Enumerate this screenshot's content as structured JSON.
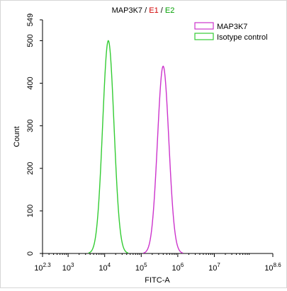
{
  "chart_data": {
    "type": "line",
    "title_parts": [
      {
        "text": "MAP3K7",
        "color": "#000000"
      },
      {
        "text": " / ",
        "color": "#000000"
      },
      {
        "text": "E1",
        "color": "#d10000"
      },
      {
        "text": " / ",
        "color": "#000000"
      },
      {
        "text": "E2",
        "color": "#00a000"
      }
    ],
    "xlabel": "FITC-A",
    "ylabel": "Count",
    "x_scale": "log",
    "xlim": [
      2.3,
      8.6
    ],
    "ylim": [
      0,
      549
    ],
    "x_ticks": [
      {
        "base": "10",
        "exp": "2.3",
        "v": 2.3
      },
      {
        "base": "10",
        "exp": "3",
        "v": 3
      },
      {
        "base": "10",
        "exp": "4",
        "v": 4
      },
      {
        "base": "10",
        "exp": "5",
        "v": 5
      },
      {
        "base": "10",
        "exp": "6",
        "v": 6
      },
      {
        "base": "10",
        "exp": "7",
        "v": 7
      },
      {
        "base": "10",
        "exp": "8.6",
        "v": 8.6
      }
    ],
    "y_ticks": [
      {
        "label": "0",
        "v": 0
      },
      {
        "label": "100",
        "v": 100
      },
      {
        "label": "200",
        "v": 200
      },
      {
        "label": "300",
        "v": 300
      },
      {
        "label": "400",
        "v": 400
      },
      {
        "label": "500",
        "v": 500
      },
      {
        "label": "549",
        "v": 549
      }
    ],
    "legend_position": "top-right",
    "series": [
      {
        "name": "MAP3K7",
        "color": "#cc33cc",
        "peak_log10_x": 5.6,
        "peak_count": 440,
        "width_log10": 0.155
      },
      {
        "name": "Isotype control",
        "color": "#33cc33",
        "peak_log10_x": 4.1,
        "peak_count": 500,
        "width_log10": 0.155
      }
    ]
  }
}
